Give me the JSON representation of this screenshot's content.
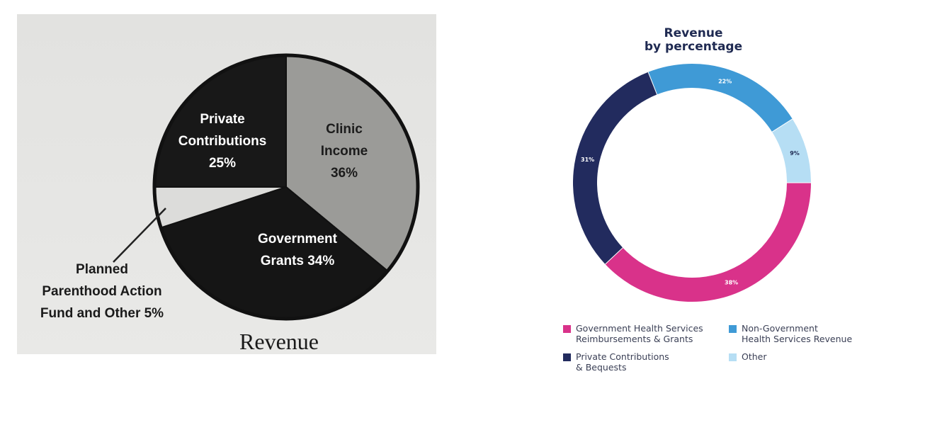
{
  "chart_data": [
    {
      "type": "pie",
      "title": "Revenue",
      "slices": [
        {
          "label": "Clinic Income",
          "value": 36,
          "display": [
            "Clinic",
            "Income",
            "36%"
          ],
          "color": "#9b9b98"
        },
        {
          "label": "Government Grants",
          "value": 34,
          "display": [
            "Government",
            "Grants 34%"
          ],
          "color": "#151515"
        },
        {
          "label": "Planned Parenthood Action Fund and Other",
          "value": 5,
          "display": [
            "Planned",
            "Parenthood Action",
            "Fund and Other 5%"
          ],
          "color": "#dcdcda"
        },
        {
          "label": "Private Contributions",
          "value": 25,
          "display": [
            "Private",
            "Contributions",
            "25%"
          ],
          "color": "#181818"
        }
      ]
    },
    {
      "type": "pie",
      "title": "Revenue",
      "subtitle": "by percentage",
      "slices": [
        {
          "label": "Government Health Services Reimbursements & Grants",
          "value": 38,
          "display": "38%",
          "color": "#d9328a"
        },
        {
          "label": "Private Contributions & Bequests",
          "value": 31,
          "display": "31%",
          "color": "#222b5e"
        },
        {
          "label": "Non-Government Health Services Revenue",
          "value": 22,
          "display": "22%",
          "color": "#3f9ad6"
        },
        {
          "label": "Other",
          "value": 9,
          "display": "9%",
          "color": "#b6def4"
        }
      ],
      "legend": [
        {
          "text": "Government Health Services\nReimbursements & Grants",
          "color": "#d9328a"
        },
        {
          "text": "Non-Government\nHealth Services Revenue",
          "color": "#3f9ad6"
        },
        {
          "text": "Private Contributions\n& Bequests",
          "color": "#222b5e"
        },
        {
          "text": "Other",
          "color": "#b6def4"
        }
      ]
    }
  ]
}
